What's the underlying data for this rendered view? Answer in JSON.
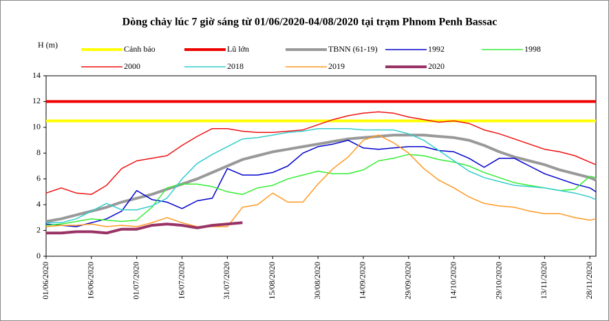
{
  "chart_data": {
    "type": "line",
    "title": "Dòng chảy lúc 7 giờ sáng từ 01/06/2020-04/08/2020 tại trạm Phnom Penh Bassac",
    "y_label": "H (m)",
    "x": [
      "01/06/2020",
      "06/06/2020",
      "11/06/2020",
      "16/06/2020",
      "21/06/2020",
      "26/06/2020",
      "01/07/2020",
      "06/07/2020",
      "11/07/2020",
      "16/07/2020",
      "21/07/2020",
      "26/07/2020",
      "31/07/2020",
      "05/08/2020",
      "10/08/2020",
      "15/08/2020",
      "20/08/2020",
      "25/08/2020",
      "30/08/2020",
      "04/09/2020",
      "09/09/2020",
      "14/09/2020",
      "19/09/2020",
      "24/09/2020",
      "29/09/2020",
      "04/10/2020",
      "09/10/2020",
      "14/10/2020",
      "19/10/2020",
      "24/10/2020",
      "29/10/2020",
      "03/11/2020",
      "08/11/2020",
      "13/11/2020",
      "18/11/2020",
      "23/11/2020",
      "28/11/2020",
      "30/11/2020"
    ],
    "xlim": [
      "01/06/2020",
      "30/11/2020"
    ],
    "xticks": [
      "01/06/2020",
      "16/06/2020",
      "01/07/2020",
      "16/07/2020",
      "31/07/2020",
      "15/08/2020",
      "30/08/2020",
      "14/09/2020",
      "29/09/2020",
      "14/10/2020",
      "29/10/2020",
      "13/11/2020",
      "28/11/2020"
    ],
    "ylim": [
      0,
      14
    ],
    "yticks": [
      0,
      2,
      4,
      6,
      8,
      10,
      12,
      14
    ],
    "series": [
      {
        "name": "Cảnh báo",
        "color": "#ffff00",
        "width": 4,
        "values": [
          10.5,
          10.5,
          10.5,
          10.5,
          10.5,
          10.5,
          10.5,
          10.5,
          10.5,
          10.5,
          10.5,
          10.5,
          10.5,
          10.5,
          10.5,
          10.5,
          10.5,
          10.5,
          10.5,
          10.5,
          10.5,
          10.5,
          10.5,
          10.5,
          10.5,
          10.5,
          10.5,
          10.5,
          10.5,
          10.5,
          10.5,
          10.5,
          10.5,
          10.5,
          10.5,
          10.5,
          10.5,
          10.5
        ]
      },
      {
        "name": "Lũ lớn",
        "color": "#ee0000",
        "width": 4,
        "values": [
          12,
          12,
          12,
          12,
          12,
          12,
          12,
          12,
          12,
          12,
          12,
          12,
          12,
          12,
          12,
          12,
          12,
          12,
          12,
          12,
          12,
          12,
          12,
          12,
          12,
          12,
          12,
          12,
          12,
          12,
          12,
          12,
          12,
          12,
          12,
          12,
          12,
          12
        ]
      },
      {
        "name": "TBNN (61-19)",
        "color": "#999999",
        "width": 4,
        "values": [
          2.7,
          2.9,
          3.2,
          3.5,
          3.8,
          4.2,
          4.5,
          4.8,
          5.2,
          5.6,
          6.0,
          6.5,
          7.0,
          7.5,
          7.8,
          8.1,
          8.3,
          8.5,
          8.7,
          8.9,
          9.1,
          9.2,
          9.3,
          9.4,
          9.4,
          9.4,
          9.3,
          9.2,
          9.0,
          8.6,
          8.1,
          7.7,
          7.4,
          7.1,
          6.7,
          6.4,
          6.1,
          5.9
        ]
      },
      {
        "name": "1992",
        "color": "#0000cc",
        "width": 1.5,
        "values": [
          2.5,
          2.4,
          2.3,
          2.6,
          2.9,
          3.5,
          5.1,
          4.4,
          4.2,
          3.7,
          4.3,
          4.5,
          6.8,
          6.3,
          6.3,
          6.5,
          7.0,
          8.0,
          8.5,
          8.7,
          9.0,
          8.4,
          8.3,
          8.4,
          8.5,
          8.5,
          8.2,
          8.1,
          7.6,
          6.9,
          7.6,
          7.6,
          7.0,
          6.4,
          6.0,
          5.6,
          5.3,
          5.0
        ]
      },
      {
        "name": "1998",
        "color": "#33ee33",
        "width": 1.5,
        "values": [
          2.4,
          2.5,
          2.7,
          2.9,
          2.8,
          2.7,
          2.8,
          3.8,
          5.3,
          5.6,
          5.6,
          5.4,
          5.0,
          4.8,
          5.3,
          5.5,
          6.0,
          6.3,
          6.6,
          6.4,
          6.4,
          6.7,
          7.4,
          7.6,
          7.9,
          7.8,
          7.5,
          7.3,
          7.0,
          6.5,
          6.1,
          5.7,
          5.5,
          5.3,
          5.1,
          5.2,
          6.2,
          6.1
        ]
      },
      {
        "name": "2000",
        "color": "#ee1111",
        "width": 1.5,
        "values": [
          4.9,
          5.3,
          4.9,
          4.8,
          5.5,
          6.8,
          7.4,
          7.6,
          7.8,
          8.6,
          9.3,
          9.9,
          9.9,
          9.7,
          9.6,
          9.6,
          9.7,
          9.8,
          10.2,
          10.6,
          10.9,
          11.1,
          11.2,
          11.1,
          10.8,
          10.6,
          10.4,
          10.5,
          10.3,
          9.8,
          9.5,
          9.1,
          8.7,
          8.3,
          8.1,
          7.8,
          7.3,
          7.1
        ]
      },
      {
        "name": "2018",
        "color": "#33cccc",
        "width": 1.5,
        "values": [
          2.6,
          2.6,
          2.9,
          3.5,
          4.1,
          3.6,
          3.6,
          3.9,
          4.5,
          6.0,
          7.2,
          7.9,
          8.5,
          9.1,
          9.2,
          9.4,
          9.6,
          9.7,
          9.9,
          9.9,
          9.9,
          9.8,
          9.8,
          9.8,
          9.5,
          9.0,
          8.2,
          7.4,
          6.6,
          6.1,
          5.8,
          5.5,
          5.4,
          5.3,
          5.1,
          4.9,
          4.6,
          4.4
        ]
      },
      {
        "name": "2019",
        "color": "#ff9922",
        "width": 1.5,
        "values": [
          2.3,
          2.4,
          2.4,
          2.5,
          2.3,
          2.4,
          2.3,
          2.6,
          3.0,
          2.6,
          2.3,
          2.3,
          2.3,
          3.8,
          4.0,
          4.9,
          4.2,
          4.2,
          5.6,
          6.8,
          7.7,
          9.0,
          9.4,
          8.8,
          8.0,
          6.8,
          5.9,
          5.3,
          4.6,
          4.1,
          3.9,
          3.8,
          3.5,
          3.3,
          3.3,
          3.0,
          2.8,
          2.9
        ]
      },
      {
        "name": "2020",
        "color": "#993366",
        "width": 4,
        "values": [
          1.8,
          1.8,
          1.9,
          1.9,
          1.8,
          2.1,
          2.1,
          2.4,
          2.5,
          2.4,
          2.2,
          2.4,
          2.5,
          2.6,
          null,
          null,
          null,
          null,
          null,
          null,
          null,
          null,
          null,
          null,
          null,
          null,
          null,
          null,
          null,
          null,
          null,
          null,
          null,
          null,
          null,
          null,
          null,
          null
        ]
      }
    ]
  }
}
